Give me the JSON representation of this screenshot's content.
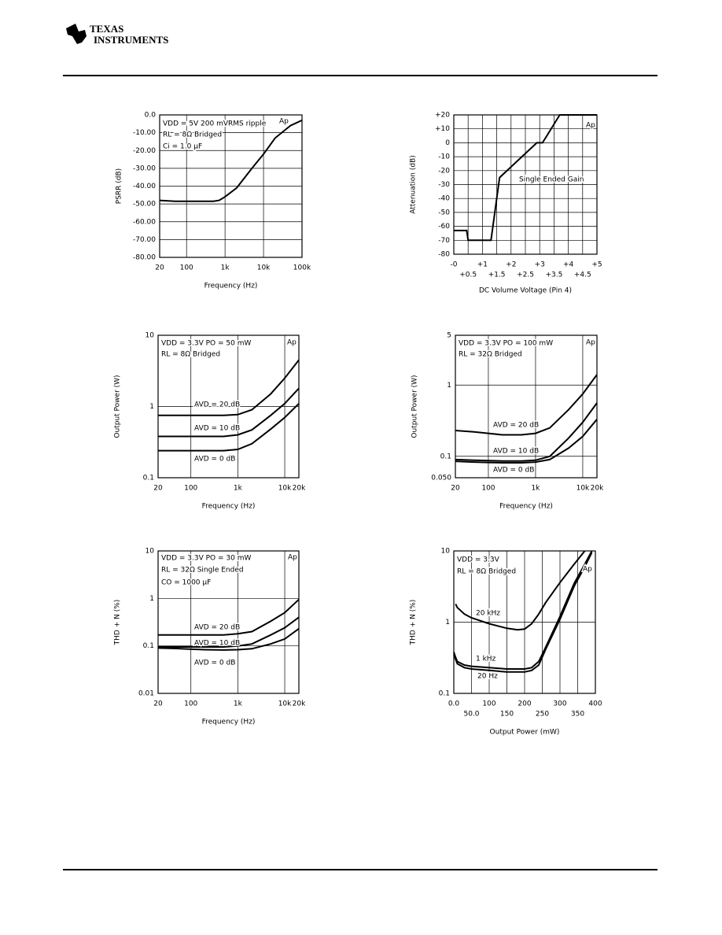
{
  "header": {
    "logo": [
      "TEXAS",
      "INSTRUMENTS"
    ]
  },
  "chart_data": [
    {
      "type": "line",
      "xlabel": "Frequency (Hz)",
      "ylabel": "PSRR (dB)",
      "xlog": true,
      "grid": true,
      "xlim": [
        20,
        100000
      ],
      "ylim": [
        -80,
        0
      ],
      "xticks": [
        20,
        100,
        {
          "value": 1000,
          "label": "1k"
        },
        {
          "value": 10000,
          "label": "10k"
        },
        {
          "value": 100000,
          "label": "100k"
        }
      ],
      "yticks": [
        {
          "value": 0,
          "label": "0.0"
        },
        {
          "value": -10,
          "label": "-10.00"
        },
        {
          "value": -20,
          "label": "-20.00"
        },
        {
          "value": -30,
          "label": "-30.00"
        },
        {
          "value": -40,
          "label": "-40.00"
        },
        {
          "value": -50,
          "label": "-50.00"
        },
        {
          "value": -60,
          "label": "-60.00"
        },
        {
          "value": -70,
          "label": "-70.00"
        },
        {
          "value": -80,
          "label": "-80.00"
        }
      ],
      "annotations": [
        "VDD = 5V 200 mVRMS ripple",
        "RL = 8Ω Bridged",
        "Ci = 1.0 µF",
        "Ap"
      ],
      "x": [
        20,
        50,
        100,
        200,
        500,
        700,
        1000,
        2000,
        5000,
        10000,
        20000,
        50000,
        100000
      ],
      "series": [
        {
          "color": "#000000",
          "values": [
            -48,
            -48.5,
            -48.5,
            -48.5,
            -48.5,
            -48,
            -46,
            -41,
            -30,
            -22,
            -13,
            -6,
            -3
          ]
        }
      ]
    },
    {
      "type": "line",
      "xlabel": "DC Volume Voltage (Pin 4)",
      "ylabel": "Attenuation (dB)",
      "grid": true,
      "xlim": [
        0,
        5
      ],
      "ylim": [
        -80,
        20
      ],
      "xticks": [
        {
          "value": 0,
          "label": "-0"
        },
        {
          "value": 0.5,
          "label": "+0.5"
        },
        {
          "value": 1,
          "label": "+1"
        },
        {
          "value": 1.5,
          "label": "+1.5"
        },
        {
          "value": 2,
          "label": "+2"
        },
        {
          "value": 2.5,
          "label": "+2.5"
        },
        {
          "value": 3,
          "label": "+3"
        },
        {
          "value": 3.5,
          "label": "+3.5"
        },
        {
          "value": 4,
          "label": "+4"
        },
        {
          "value": 4.5,
          "label": "+4.5"
        },
        {
          "value": 5,
          "label": "+5"
        }
      ],
      "yticks": [
        {
          "value": 20,
          "label": "+20"
        },
        {
          "value": 10,
          "label": "+10"
        },
        0,
        -10,
        -20,
        -30,
        -40,
        -50,
        -60,
        -70,
        -80
      ],
      "annotations": [
        "Single Ended Gain",
        "Ap"
      ],
      "x": [
        0,
        0.45,
        0.5,
        1.3,
        1.6,
        2.9,
        3.1,
        3.7,
        5
      ],
      "series": [
        {
          "color": "#000000",
          "values": [
            -63,
            -63,
            -70,
            -70,
            -25,
            0,
            0,
            20,
            20
          ]
        }
      ]
    },
    {
      "type": "line",
      "xlabel": "Frequency (Hz)",
      "ylabel": "Output Power (W)",
      "xlog": true,
      "ylog": true,
      "grid": true,
      "xlim": [
        20,
        20000
      ],
      "ylim": [
        0.1,
        10
      ],
      "xticks": [
        20,
        100,
        {
          "value": 1000,
          "label": "1k"
        },
        {
          "value": 10000,
          "label": "10k"
        },
        {
          "value": 20000,
          "label": "20k"
        }
      ],
      "yticks": [
        0.1,
        1,
        10
      ],
      "annotations": [
        "VDD = 3.3V   PO = 50 mW",
        "RL = 8Ω Bridged",
        "Ap"
      ],
      "x": [
        20,
        50,
        100,
        200,
        500,
        1000,
        2000,
        5000,
        10000,
        20000
      ],
      "series": [
        {
          "name": "AVD = 20 dB",
          "color": "#000000",
          "values": [
            0.75,
            0.75,
            0.75,
            0.75,
            0.75,
            0.77,
            0.9,
            1.5,
            2.5,
            4.5
          ]
        },
        {
          "name": "AVD = 10 dB",
          "color": "#000000",
          "values": [
            0.38,
            0.38,
            0.38,
            0.38,
            0.38,
            0.4,
            0.47,
            0.75,
            1.1,
            1.8
          ]
        },
        {
          "name": "AVD = 0 dB",
          "color": "#000000",
          "values": [
            0.24,
            0.24,
            0.24,
            0.24,
            0.24,
            0.25,
            0.3,
            0.48,
            0.7,
            1.1
          ]
        }
      ]
    },
    {
      "type": "line",
      "xlabel": "Frequency (Hz)",
      "ylabel": "Output Power (W)",
      "xlog": true,
      "ylog": true,
      "grid": true,
      "xlim": [
        20,
        20000
      ],
      "ylim": [
        0.05,
        5
      ],
      "xticks": [
        20,
        100,
        {
          "value": 1000,
          "label": "1k"
        },
        {
          "value": 10000,
          "label": "10k"
        },
        {
          "value": 20000,
          "label": "20k"
        }
      ],
      "yticks": [
        {
          "value": 0.05,
          "label": "0.050"
        },
        0.1,
        1,
        5
      ],
      "annotations": [
        "VDD = 3.3V   PO = 100 mW",
        "RL = 32Ω Bridged",
        "Ap"
      ],
      "x": [
        20,
        50,
        100,
        200,
        500,
        1000,
        2000,
        5000,
        10000,
        20000
      ],
      "series": [
        {
          "name": "AVD = 20 dB",
          "color": "#000000",
          "values": [
            0.23,
            0.22,
            0.21,
            0.2,
            0.2,
            0.21,
            0.25,
            0.45,
            0.75,
            1.4
          ]
        },
        {
          "name": "AVD = 10 dB",
          "color": "#000000",
          "values": [
            0.09,
            0.088,
            0.087,
            0.086,
            0.086,
            0.088,
            0.1,
            0.18,
            0.3,
            0.56
          ]
        },
        {
          "name": "AVD = 0 dB",
          "color": "#000000",
          "values": [
            0.085,
            0.083,
            0.082,
            0.081,
            0.081,
            0.083,
            0.09,
            0.13,
            0.19,
            0.33
          ]
        }
      ]
    },
    {
      "type": "line",
      "xlabel": "Frequency (Hz)",
      "ylabel": "THD + N (%)",
      "xlog": true,
      "ylog": true,
      "grid": true,
      "xlim": [
        20,
        20000
      ],
      "ylim": [
        0.01,
        10
      ],
      "xticks": [
        20,
        100,
        {
          "value": 1000,
          "label": "1k"
        },
        {
          "value": 10000,
          "label": "10k"
        },
        {
          "value": 20000,
          "label": "20k"
        }
      ],
      "yticks": [
        0.01,
        0.1,
        1,
        10
      ],
      "annotations": [
        "VDD = 3.3V   PO = 30 mW",
        "RL = 32Ω Single Ended",
        "CO = 1000 µF",
        "Ap"
      ],
      "x": [
        20,
        50,
        100,
        200,
        500,
        1000,
        2000,
        5000,
        10000,
        20000
      ],
      "series": [
        {
          "name": "AVD = 20 dB",
          "color": "#000000",
          "values": [
            0.17,
            0.17,
            0.17,
            0.17,
            0.17,
            0.18,
            0.2,
            0.33,
            0.5,
            0.95
          ]
        },
        {
          "name": "AVD = 10 dB",
          "color": "#000000",
          "values": [
            0.095,
            0.095,
            0.095,
            0.095,
            0.095,
            0.1,
            0.11,
            0.17,
            0.24,
            0.4
          ]
        },
        {
          "name": "AVD = 0 dB",
          "color": "#000000",
          "values": [
            0.09,
            0.088,
            0.085,
            0.083,
            0.082,
            0.083,
            0.087,
            0.11,
            0.14,
            0.23
          ]
        }
      ]
    },
    {
      "type": "line",
      "xlabel": "Output Power (mW)",
      "ylabel": "THD + N (%)",
      "ylog": true,
      "grid": true,
      "xlim": [
        0,
        400
      ],
      "ylim": [
        0.1,
        10
      ],
      "xticks": [
        {
          "value": 0,
          "label": "0.0"
        },
        {
          "value": 50,
          "label": "50.0"
        },
        100,
        150,
        200,
        250,
        300,
        350,
        400
      ],
      "yticks": [
        0.1,
        1,
        10
      ],
      "annotations": [
        "VDD = 3.3V",
        "RL = 8Ω Bridged",
        "Ap"
      ],
      "x": [
        0,
        5,
        10,
        30,
        50,
        100,
        150,
        180,
        200,
        220,
        240,
        260,
        300,
        340,
        370,
        390
      ],
      "series": [
        {
          "name": "20 kHz",
          "color": "#000000",
          "values": [
            null,
            1.8,
            1.6,
            1.3,
            1.15,
            0.95,
            0.82,
            0.78,
            0.8,
            0.95,
            1.3,
            1.9,
            3.6,
            6.5,
            10,
            null
          ]
        },
        {
          "name": "1 kHz",
          "color": "#000000",
          "values": [
            0.38,
            0.32,
            0.28,
            0.25,
            0.24,
            0.23,
            0.22,
            0.22,
            0.22,
            0.23,
            0.28,
            0.45,
            1.2,
            3.5,
            6.5,
            10
          ]
        },
        {
          "name": "20 Hz",
          "color": "#000000",
          "values": [
            0.35,
            0.3,
            0.26,
            0.23,
            0.22,
            0.21,
            0.2,
            0.2,
            0.2,
            0.21,
            0.25,
            0.42,
            1.1,
            3.2,
            6,
            9.5
          ]
        }
      ]
    }
  ]
}
